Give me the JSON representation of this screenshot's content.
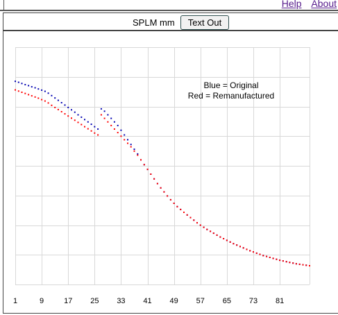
{
  "links": {
    "help": "Help",
    "about": "About"
  },
  "toolbar": {
    "units_label": "SPLM mm",
    "text_out_label": "Text Out"
  },
  "colors": {
    "original": "#0000b0",
    "remanufactured": "#ff0000",
    "grid": "#d8d8d8"
  },
  "chart_data": {
    "type": "scatter",
    "title": "",
    "xlabel": "",
    "ylabel": "",
    "xlim": [
      1,
      90
    ],
    "grid": true,
    "legend": "top-right",
    "legend_lines": [
      "Blue = Original",
      "Red = Remanufactured"
    ],
    "x_ticks": [
      1,
      9,
      17,
      25,
      33,
      41,
      49,
      57,
      65,
      73,
      81
    ],
    "y_ticks_shown": false,
    "series": [
      {
        "name": "Original",
        "color": "#0000b0",
        "points": [
          [
            1,
            0.856
          ],
          [
            2,
            0.852
          ],
          [
            3,
            0.847
          ],
          [
            4,
            0.842
          ],
          [
            5,
            0.838
          ],
          [
            6,
            0.833
          ],
          [
            7,
            0.829
          ],
          [
            8,
            0.824
          ],
          [
            9,
            0.819
          ],
          [
            10,
            0.814
          ],
          [
            11,
            0.806
          ],
          [
            12,
            0.796
          ],
          [
            13,
            0.786
          ],
          [
            14,
            0.776
          ],
          [
            15,
            0.766
          ],
          [
            16,
            0.756
          ],
          [
            17,
            0.746
          ],
          [
            18,
            0.736
          ],
          [
            19,
            0.726
          ],
          [
            20,
            0.715
          ],
          [
            21,
            0.705
          ],
          [
            22,
            0.695
          ],
          [
            23,
            0.685
          ],
          [
            24,
            0.675
          ],
          [
            25,
            0.665
          ],
          [
            26,
            0.655
          ],
          [
            27,
            0.74
          ],
          [
            28,
            0.73
          ],
          [
            29,
            0.715
          ],
          [
            30,
            0.7
          ],
          [
            31,
            0.685
          ],
          [
            32,
            0.67
          ],
          [
            33,
            0.65
          ],
          [
            34,
            0.63
          ],
          [
            35,
            0.61
          ],
          [
            36,
            0.59
          ],
          [
            37,
            0.57
          ],
          [
            38,
            0.55
          ],
          [
            39,
            0.525
          ],
          [
            40,
            0.505
          ],
          [
            41,
            0.485
          ],
          [
            42,
            0.465
          ],
          [
            43,
            0.445
          ],
          [
            44,
            0.425
          ],
          [
            45,
            0.407
          ],
          [
            46,
            0.39
          ],
          [
            47,
            0.373
          ],
          [
            48,
            0.357
          ],
          [
            49,
            0.342
          ],
          [
            50,
            0.328
          ],
          [
            51,
            0.316
          ],
          [
            52,
            0.304
          ],
          [
            53,
            0.293
          ],
          [
            54,
            0.282
          ],
          [
            55,
            0.271
          ],
          [
            56,
            0.26
          ],
          [
            57,
            0.25
          ],
          [
            58,
            0.241
          ],
          [
            59,
            0.232
          ],
          [
            60,
            0.224
          ],
          [
            61,
            0.216
          ],
          [
            62,
            0.208
          ],
          [
            63,
            0.2
          ],
          [
            64,
            0.193
          ],
          [
            65,
            0.186
          ],
          [
            66,
            0.179
          ],
          [
            67,
            0.172
          ],
          [
            68,
            0.166
          ],
          [
            69,
            0.16
          ],
          [
            70,
            0.154
          ],
          [
            71,
            0.148
          ],
          [
            72,
            0.142
          ],
          [
            73,
            0.137
          ],
          [
            74,
            0.132
          ],
          [
            75,
            0.127
          ],
          [
            76,
            0.122
          ],
          [
            77,
            0.118
          ],
          [
            78,
            0.114
          ],
          [
            79,
            0.11
          ],
          [
            80,
            0.106
          ],
          [
            81,
            0.102
          ],
          [
            82,
            0.099
          ],
          [
            83,
            0.096
          ],
          [
            84,
            0.093
          ],
          [
            85,
            0.09
          ],
          [
            86,
            0.087
          ],
          [
            87,
            0.085
          ],
          [
            88,
            0.083
          ],
          [
            89,
            0.081
          ],
          [
            90,
            0.079
          ]
        ]
      },
      {
        "name": "Remanufactured",
        "color": "#ff0000",
        "points": [
          [
            1,
            0.82
          ],
          [
            2,
            0.815
          ],
          [
            3,
            0.81
          ],
          [
            4,
            0.805
          ],
          [
            5,
            0.8
          ],
          [
            6,
            0.795
          ],
          [
            7,
            0.79
          ],
          [
            8,
            0.785
          ],
          [
            9,
            0.779
          ],
          [
            10,
            0.773
          ],
          [
            11,
            0.765
          ],
          [
            12,
            0.755
          ],
          [
            13,
            0.746
          ],
          [
            14,
            0.737
          ],
          [
            15,
            0.728
          ],
          [
            16,
            0.719
          ],
          [
            17,
            0.71
          ],
          [
            18,
            0.701
          ],
          [
            19,
            0.692
          ],
          [
            20,
            0.683
          ],
          [
            21,
            0.674
          ],
          [
            22,
            0.665
          ],
          [
            23,
            0.656
          ],
          [
            24,
            0.647
          ],
          [
            25,
            0.638
          ],
          [
            26,
            0.63
          ],
          [
            27,
            0.715
          ],
          [
            28,
            0.7
          ],
          [
            29,
            0.685
          ],
          [
            30,
            0.67
          ],
          [
            31,
            0.655
          ],
          [
            32,
            0.64
          ],
          [
            33,
            0.625
          ],
          [
            34,
            0.61
          ],
          [
            35,
            0.595
          ],
          [
            36,
            0.58
          ],
          [
            37,
            0.562
          ],
          [
            38,
            0.545
          ],
          [
            39,
            0.525
          ],
          [
            40,
            0.505
          ],
          [
            41,
            0.485
          ],
          [
            42,
            0.465
          ],
          [
            43,
            0.445
          ],
          [
            44,
            0.425
          ],
          [
            45,
            0.407
          ],
          [
            46,
            0.39
          ],
          [
            47,
            0.373
          ],
          [
            48,
            0.357
          ],
          [
            49,
            0.342
          ],
          [
            50,
            0.328
          ],
          [
            51,
            0.316
          ],
          [
            52,
            0.304
          ],
          [
            53,
            0.293
          ],
          [
            54,
            0.282
          ],
          [
            55,
            0.271
          ],
          [
            56,
            0.26
          ],
          [
            57,
            0.25
          ],
          [
            58,
            0.241
          ],
          [
            59,
            0.232
          ],
          [
            60,
            0.224
          ],
          [
            61,
            0.216
          ],
          [
            62,
            0.208
          ],
          [
            63,
            0.2
          ],
          [
            64,
            0.193
          ],
          [
            65,
            0.186
          ],
          [
            66,
            0.179
          ],
          [
            67,
            0.172
          ],
          [
            68,
            0.166
          ],
          [
            69,
            0.16
          ],
          [
            70,
            0.154
          ],
          [
            71,
            0.148
          ],
          [
            72,
            0.142
          ],
          [
            73,
            0.137
          ],
          [
            74,
            0.132
          ],
          [
            75,
            0.127
          ],
          [
            76,
            0.122
          ],
          [
            77,
            0.118
          ],
          [
            78,
            0.114
          ],
          [
            79,
            0.11
          ],
          [
            80,
            0.106
          ],
          [
            81,
            0.102
          ],
          [
            82,
            0.099
          ],
          [
            83,
            0.096
          ],
          [
            84,
            0.093
          ],
          [
            85,
            0.09
          ],
          [
            86,
            0.087
          ],
          [
            87,
            0.085
          ],
          [
            88,
            0.083
          ],
          [
            89,
            0.081
          ],
          [
            90,
            0.079
          ]
        ]
      }
    ]
  }
}
